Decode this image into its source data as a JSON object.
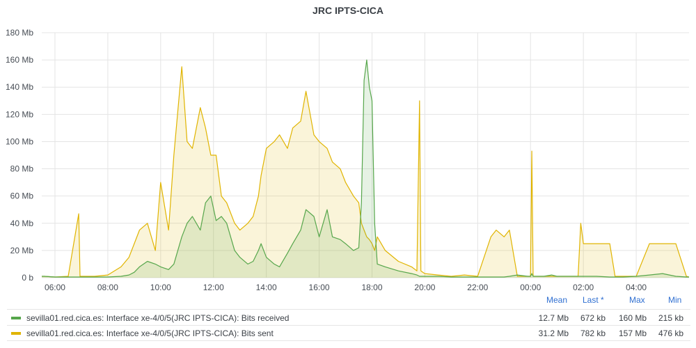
{
  "chart_data": {
    "type": "area",
    "title": "JRC IPTS-CICA",
    "y_unit": "Mb",
    "ylim": [
      0,
      180
    ],
    "y_ticks": [
      "0 b",
      "20 Mb",
      "40 Mb",
      "60 Mb",
      "80 Mb",
      "100 Mb",
      "120 Mb",
      "140 Mb",
      "160 Mb",
      "180 Mb"
    ],
    "x_ticks": [
      "06:00",
      "08:00",
      "10:00",
      "12:00",
      "14:00",
      "16:00",
      "18:00",
      "20:00",
      "22:00",
      "00:00",
      "02:00",
      "04:00"
    ],
    "x_hours": [
      5.5,
      5.6,
      6.0,
      6.5,
      6.9,
      6.95,
      7.05,
      7.5,
      8.0,
      8.5,
      8.8,
      9.0,
      9.2,
      9.5,
      9.8,
      10.0,
      10.3,
      10.5,
      10.8,
      11.0,
      11.2,
      11.5,
      11.7,
      11.9,
      12.1,
      12.3,
      12.5,
      12.8,
      13.0,
      13.3,
      13.5,
      13.7,
      13.8,
      14.0,
      14.3,
      14.5,
      14.8,
      15.0,
      15.3,
      15.5,
      15.8,
      16.0,
      16.3,
      16.5,
      16.8,
      17.0,
      17.3,
      17.5,
      17.6,
      17.7,
      17.8,
      17.9,
      18.0,
      18.1,
      18.2,
      18.5,
      19.0,
      19.5,
      19.7,
      19.8,
      19.85,
      20.0,
      20.5,
      21.0,
      21.5,
      22.0,
      22.5,
      22.7,
      23.0,
      23.2,
      23.5,
      23.9,
      24.0,
      24.05,
      24.1,
      24.5,
      24.8,
      25.0,
      25.5,
      25.8,
      25.9,
      26.0,
      26.2,
      26.5,
      27.0,
      27.2,
      27.5,
      28.0,
      28.5,
      29.0,
      29.5,
      29.9,
      30.0
    ],
    "series": [
      {
        "name": "sevilla01.red.cica.es: Interface xe-4/0/5(JRC IPTS-CICA): Bits received",
        "color": "#56a64b",
        "values": [
          1,
          1,
          0.5,
          0.5,
          0.5,
          0.5,
          0.5,
          0.5,
          0.5,
          1,
          2,
          4,
          8,
          12,
          10,
          8,
          6,
          10,
          30,
          40,
          45,
          35,
          55,
          60,
          42,
          45,
          40,
          20,
          15,
          10,
          12,
          20,
          25,
          15,
          10,
          8,
          18,
          25,
          35,
          50,
          45,
          30,
          50,
          30,
          28,
          25,
          20,
          22,
          55,
          145,
          160,
          140,
          130,
          40,
          10,
          8,
          5,
          3,
          2,
          1,
          1,
          1,
          1,
          0.5,
          0.5,
          0.5,
          0.5,
          0.5,
          0.5,
          1,
          2,
          1,
          1,
          3,
          1,
          1,
          2,
          1,
          1,
          1,
          1,
          1,
          1,
          1,
          0.5,
          0.5,
          0.5,
          1,
          2,
          3,
          1,
          0.5,
          0.5
        ]
      },
      {
        "name": "sevilla01.red.cica.es: Interface xe-4/0/5(JRC IPTS-CICA): Bits sent",
        "color": "#e0b400",
        "values": [
          1,
          1,
          0.5,
          1,
          47,
          1,
          1,
          1,
          2,
          8,
          15,
          25,
          35,
          40,
          20,
          70,
          35,
          90,
          155,
          100,
          95,
          125,
          110,
          90,
          90,
          60,
          55,
          40,
          35,
          40,
          45,
          60,
          75,
          95,
          100,
          105,
          95,
          110,
          115,
          137,
          105,
          100,
          95,
          85,
          80,
          70,
          60,
          55,
          40,
          35,
          30,
          28,
          25,
          20,
          30,
          20,
          12,
          8,
          5,
          130,
          5,
          3,
          2,
          1,
          2,
          1,
          30,
          35,
          30,
          35,
          1,
          1,
          1,
          93,
          1,
          1,
          1,
          1,
          1,
          1,
          40,
          25,
          25,
          25,
          25,
          1,
          1,
          1,
          25,
          25,
          25,
          1,
          0.5
        ]
      }
    ],
    "grid": true,
    "legend_position": "bottom"
  },
  "legend": {
    "headers": [
      "Mean",
      "Last *",
      "Max",
      "Min"
    ],
    "rows": [
      {
        "name": "sevilla01.red.cica.es: Interface xe-4/0/5(JRC IPTS-CICA): Bits received",
        "color": "#56a64b",
        "mean": "12.7 Mb",
        "last": "672 kb",
        "max": "160 Mb",
        "min": "215 kb"
      },
      {
        "name": "sevilla01.red.cica.es: Interface xe-4/0/5(JRC IPTS-CICA): Bits sent",
        "color": "#e0b400",
        "mean": "31.2 Mb",
        "last": "782 kb",
        "max": "157 Mb",
        "min": "476 kb"
      }
    ]
  }
}
